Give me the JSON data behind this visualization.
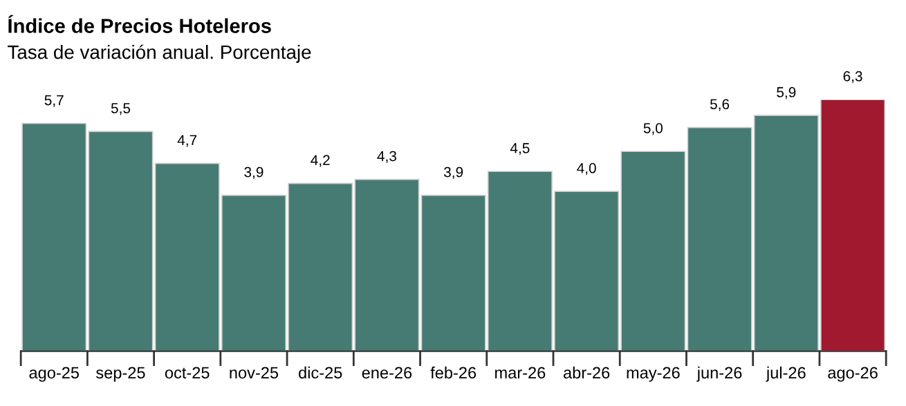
{
  "chart_data": {
    "type": "bar",
    "title": "Índice de Precios Hoteleros",
    "subtitle": "Tasa de variación anual. Porcentaje",
    "categories": [
      "ago-25",
      "sep-25",
      "oct-25",
      "nov-25",
      "dic-25",
      "ene-26",
      "feb-26",
      "mar-26",
      "abr-26",
      "may-26",
      "jun-26",
      "jul-26",
      "ago-26"
    ],
    "values": [
      5.7,
      5.5,
      4.7,
      3.9,
      4.2,
      4.3,
      3.9,
      4.5,
      4.0,
      5.0,
      5.6,
      5.9,
      6.3
    ],
    "colors": [
      "#467b73",
      "#467b73",
      "#467b73",
      "#467b73",
      "#467b73",
      "#467b73",
      "#467b73",
      "#467b73",
      "#467b73",
      "#467b73",
      "#467b73",
      "#467b73",
      "#a0192f"
    ],
    "value_labels": [
      "5,7",
      "5,5",
      "4,7",
      "3,9",
      "4,2",
      "4,3",
      "3,9",
      "4,5",
      "4,0",
      "5,0",
      "5,6",
      "5,9",
      "6,3"
    ],
    "tick_labels": "x"
  }
}
